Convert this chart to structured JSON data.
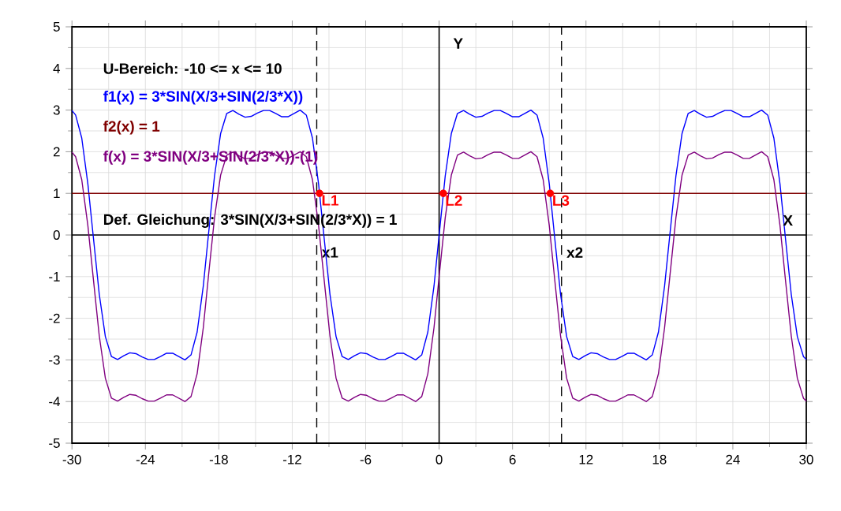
{
  "chart_data": {
    "type": "line",
    "xlabel": "X",
    "ylabel": "Y",
    "xlim": [
      -30,
      30
    ],
    "ylim": [
      -5,
      5
    ],
    "xticks": [
      -30,
      -24,
      -18,
      -12,
      -6,
      0,
      6,
      12,
      18,
      24,
      30
    ],
    "yticks": [
      -5,
      -4,
      -3,
      -2,
      -1,
      0,
      1,
      2,
      3,
      4,
      5
    ],
    "grid": true,
    "legend": "top left",
    "annotations": [
      "U-Bereich: -10 <= x <= 10",
      "Def. Gleichung: 3*SIN(X/3+SIN(2/3*X)) = 1",
      {
        "text": "L1",
        "x": -9.77,
        "y": 1
      },
      {
        "text": "L2",
        "x": 0.34,
        "y": 1
      },
      {
        "text": "L3",
        "x": 9.08,
        "y": 1
      }
    ],
    "ref_lines": [
      {
        "axis": "x",
        "value": -10,
        "label": "x1",
        "line_style": "dashed"
      },
      {
        "axis": "x",
        "value": 10,
        "label": "x2",
        "line_style": "dashed"
      }
    ],
    "series": [
      {
        "name": "f1(x) = 3*SIN(X/3+SIN(2/3*X))",
        "color": "#0000ff",
        "type": "line",
        "x": [
          -30,
          -29.7,
          -29.2,
          -28.7,
          -28.27,
          -27.77,
          -27.27,
          -26.77,
          -26.27,
          -25.77,
          -25.27,
          -24.77,
          -24.27,
          -23.77,
          -23.27,
          -22.77,
          -22.27,
          -21.77,
          -21.27,
          -20.77,
          -20.27,
          -19.77,
          -19.27,
          -18.85,
          -18.35,
          -17.85,
          -17.35,
          -16.85,
          -16.35,
          -15.85,
          -15.35,
          -14.85,
          -14.35,
          -13.85,
          -13.35,
          -12.85,
          -12.35,
          -11.85,
          -11.35,
          -10.85,
          -10.35,
          -9.85,
          -9.42,
          -8.92,
          -8.42,
          -7.92,
          -7.42,
          -6.92,
          -6.42,
          -5.92,
          -5.42,
          -4.92,
          -4.42,
          -3.92,
          -3.42,
          -2.92,
          -2.42,
          -1.92,
          -1.42,
          -0.92,
          -0.42,
          0,
          0.5,
          1,
          1.5,
          2,
          2.5,
          3,
          3.5,
          4,
          4.5,
          5,
          5.5,
          6,
          6.5,
          7,
          7.5,
          8,
          8.5,
          9,
          9.42,
          9.92,
          10.42,
          10.92,
          11.42,
          11.92,
          12.42,
          12.92,
          13.42,
          13.92,
          14.42,
          14.92,
          15.42,
          15.92,
          16.42,
          16.92,
          17.42,
          17.92,
          18.42,
          18.85,
          19.35,
          19.85,
          20.35,
          20.85,
          21.35,
          21.85,
          22.35,
          22.85,
          23.35,
          23.85,
          24.35,
          24.85,
          25.35,
          25.85,
          26.35,
          26.85,
          27.35,
          27.85,
          28.27,
          28.77,
          29.27,
          29.77,
          30
        ],
        "values": [
          2.99,
          2.88,
          2.33,
          1.23,
          0,
          -1.42,
          -2.44,
          -2.92,
          -2.99,
          -2.9,
          -2.83,
          -2.85,
          -2.93,
          -2.99,
          -2.99,
          -2.92,
          -2.84,
          -2.84,
          -2.92,
          -3.0,
          -2.88,
          -2.33,
          -1.23,
          0,
          1.42,
          2.44,
          2.92,
          2.99,
          2.9,
          2.83,
          2.85,
          2.93,
          2.99,
          2.99,
          2.92,
          2.84,
          2.84,
          2.92,
          3.0,
          2.88,
          2.33,
          1.23,
          0,
          -1.42,
          -2.44,
          -2.92,
          -2.99,
          -2.9,
          -2.83,
          -2.85,
          -2.93,
          -2.99,
          -2.99,
          -2.92,
          -2.84,
          -2.84,
          -2.92,
          -3.0,
          -2.88,
          -2.33,
          -1.23,
          0,
          1.42,
          2.44,
          2.92,
          2.99,
          2.9,
          2.83,
          2.85,
          2.93,
          2.99,
          2.99,
          2.92,
          2.84,
          2.84,
          2.92,
          3.0,
          2.88,
          2.33,
          1.23,
          0,
          -1.42,
          -2.44,
          -2.92,
          -2.99,
          -2.9,
          -2.83,
          -2.85,
          -2.93,
          -2.99,
          -2.99,
          -2.92,
          -2.84,
          -2.84,
          -2.92,
          -3.0,
          -2.88,
          -2.33,
          -1.23,
          0,
          1.42,
          2.44,
          2.92,
          2.99,
          2.9,
          2.83,
          2.85,
          2.93,
          2.99,
          2.99,
          2.92,
          2.84,
          2.84,
          2.92,
          3.0,
          2.88,
          2.33,
          1.23,
          0,
          -1.42,
          -2.44,
          -2.92,
          -2.99
        ]
      },
      {
        "name": "f2(x) = 1",
        "color": "#800000",
        "type": "line",
        "x": [
          -30,
          30
        ],
        "values": [
          1,
          1
        ]
      },
      {
        "name": "f(x) = 3*SIN(X/3+SIN(2/3*X))-(1)",
        "color": "#800080",
        "type": "line",
        "x": [
          -30,
          -29.7,
          -29.2,
          -28.7,
          -28.27,
          -27.77,
          -27.27,
          -26.77,
          -26.27,
          -25.77,
          -25.27,
          -24.77,
          -24.27,
          -23.77,
          -23.27,
          -22.77,
          -22.27,
          -21.77,
          -21.27,
          -20.77,
          -20.27,
          -19.77,
          -19.27,
          -18.85,
          -18.35,
          -17.85,
          -17.35,
          -16.85,
          -16.35,
          -15.85,
          -15.35,
          -14.85,
          -14.35,
          -13.85,
          -13.35,
          -12.85,
          -12.35,
          -11.85,
          -11.35,
          -10.85,
          -10.35,
          -9.85,
          -9.42,
          -8.92,
          -8.42,
          -7.92,
          -7.42,
          -6.92,
          -6.42,
          -5.92,
          -5.42,
          -4.92,
          -4.42,
          -3.92,
          -3.42,
          -2.92,
          -2.42,
          -1.92,
          -1.42,
          -0.92,
          -0.42,
          0,
          0.5,
          1,
          1.5,
          2,
          2.5,
          3,
          3.5,
          4,
          4.5,
          5,
          5.5,
          6,
          6.5,
          7,
          7.5,
          8,
          8.5,
          9,
          9.42,
          9.92,
          10.42,
          10.92,
          11.42,
          11.92,
          12.42,
          12.92,
          13.42,
          13.92,
          14.42,
          14.92,
          15.42,
          15.92,
          16.42,
          16.92,
          17.42,
          17.92,
          18.42,
          18.85,
          19.35,
          19.85,
          20.35,
          20.85,
          21.35,
          21.85,
          22.35,
          22.85,
          23.35,
          23.85,
          24.35,
          24.85,
          25.35,
          25.85,
          26.35,
          26.85,
          27.35,
          27.85,
          28.27,
          28.77,
          29.27,
          29.77,
          30
        ],
        "values": [
          1.99,
          1.88,
          1.33,
          0.23,
          -1,
          -2.42,
          -3.44,
          -3.92,
          -3.99,
          -3.9,
          -3.83,
          -3.85,
          -3.93,
          -3.99,
          -3.99,
          -3.92,
          -3.84,
          -3.84,
          -3.92,
          -4.0,
          -3.88,
          -3.33,
          -2.23,
          -1,
          0.42,
          1.44,
          1.92,
          1.99,
          1.9,
          1.83,
          1.85,
          1.93,
          1.99,
          1.99,
          1.92,
          1.84,
          1.84,
          1.92,
          2.0,
          1.88,
          1.33,
          0.23,
          -1,
          -2.42,
          -3.44,
          -3.92,
          -3.99,
          -3.9,
          -3.83,
          -3.85,
          -3.93,
          -3.99,
          -3.99,
          -3.92,
          -3.84,
          -3.84,
          -3.92,
          -4.0,
          -3.88,
          -3.33,
          -2.23,
          -1,
          0.42,
          1.44,
          1.92,
          1.99,
          1.9,
          1.83,
          1.85,
          1.93,
          1.99,
          1.99,
          1.92,
          1.84,
          1.84,
          1.92,
          2.0,
          1.88,
          1.33,
          0.23,
          -1,
          -2.42,
          -3.44,
          -3.92,
          -3.99,
          -3.9,
          -3.83,
          -3.85,
          -3.93,
          -3.99,
          -3.99,
          -3.92,
          -3.84,
          -3.84,
          -3.92,
          -4.0,
          -3.88,
          -3.33,
          -2.23,
          -1,
          0.42,
          1.44,
          1.92,
          1.99,
          1.9,
          1.83,
          1.85,
          1.93,
          1.99,
          1.99,
          1.92,
          1.84,
          1.84,
          1.92,
          2.0,
          1.88,
          1.33,
          0.23,
          -1,
          -2.42,
          -3.44,
          -3.92,
          -3.99
        ]
      },
      {
        "color": "#ff0000",
        "type": "scatter",
        "x": [
          -9.77,
          0.34,
          9.08
        ],
        "values": [
          1,
          1,
          1
        ]
      }
    ]
  }
}
